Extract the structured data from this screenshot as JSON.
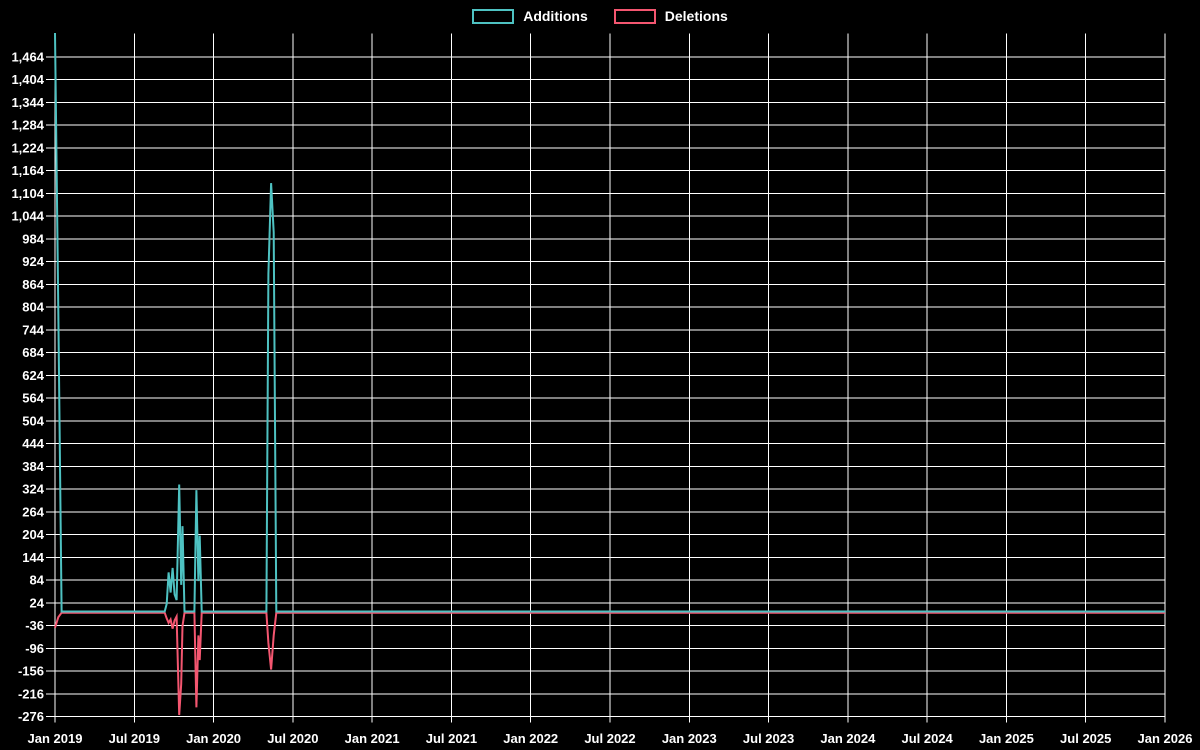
{
  "legend": {
    "items": [
      {
        "label": "Additions",
        "color": "#4ec2c2"
      },
      {
        "label": "Deletions",
        "color": "#f45670"
      }
    ]
  },
  "chart_data": {
    "type": "line",
    "title": "",
    "xlabel": "",
    "ylabel": "",
    "background_color": "#000000",
    "grid_color": "#ffffff",
    "text_color": "#ffffff",
    "grid": true,
    "legend_position": "top-center",
    "x_axis": {
      "tick_labels": [
        "Jan 2019",
        "Jul 2019",
        "Jan 2020",
        "Jul 2020",
        "Jan 2021",
        "Jul 2021",
        "Jan 2022",
        "Jul 2022",
        "Jan 2023",
        "Jul 2023",
        "Jan 2024",
        "Jul 2024",
        "Jan 2025",
        "Jul 2025",
        "Jan 2026"
      ],
      "tick_month_offsets": [
        0,
        6,
        12,
        18,
        24,
        30,
        36,
        42,
        48,
        54,
        60,
        66,
        72,
        78,
        84
      ],
      "gridline_interval_months": 6
    },
    "y_axis": {
      "min": -276,
      "max": 1464,
      "step": 60,
      "tick_labels": [
        "1,464",
        "1,404",
        "1,344",
        "1,284",
        "1,224",
        "1,164",
        "1,104",
        "1,044",
        "984",
        "924",
        "864",
        "804",
        "744",
        "684",
        "624",
        "564",
        "504",
        "444",
        "384",
        "324",
        "264",
        "204",
        "144",
        "84",
        "24",
        "-36",
        "-96",
        "-156",
        "-216",
        "-276"
      ]
    },
    "series": [
      {
        "name": "Additions",
        "color": "#4ec2c2",
        "x_unit": "months_since_jan_2019",
        "clipped_at_top": true,
        "points": [
          [
            0,
            1540
          ],
          [
            0.25,
            795
          ],
          [
            0.5,
            0
          ],
          [
            8.3,
            0
          ],
          [
            8.45,
            20
          ],
          [
            8.6,
            103
          ],
          [
            8.75,
            50
          ],
          [
            8.9,
            115
          ],
          [
            9.05,
            45
          ],
          [
            9.2,
            30
          ],
          [
            9.4,
            335
          ],
          [
            9.55,
            70
          ],
          [
            9.65,
            225
          ],
          [
            9.8,
            0
          ],
          [
            10.55,
            0
          ],
          [
            10.7,
            320
          ],
          [
            10.85,
            80
          ],
          [
            10.95,
            200
          ],
          [
            11.1,
            0
          ],
          [
            16.0,
            0
          ],
          [
            16.15,
            890
          ],
          [
            16.35,
            1130
          ],
          [
            16.55,
            1000
          ],
          [
            16.75,
            0
          ],
          [
            84,
            0
          ]
        ]
      },
      {
        "name": "Deletions",
        "color": "#f45670",
        "x_unit": "months_since_jan_2019",
        "clipped_at_top": false,
        "points": [
          [
            0,
            -40
          ],
          [
            0.25,
            -12
          ],
          [
            0.5,
            0
          ],
          [
            8.3,
            0
          ],
          [
            8.45,
            -15
          ],
          [
            8.6,
            -27
          ],
          [
            8.75,
            -18
          ],
          [
            8.9,
            -42
          ],
          [
            9.05,
            -20
          ],
          [
            9.2,
            -10
          ],
          [
            9.4,
            -270
          ],
          [
            9.55,
            -188
          ],
          [
            9.65,
            -35
          ],
          [
            9.8,
            0
          ],
          [
            10.55,
            0
          ],
          [
            10.7,
            -250
          ],
          [
            10.85,
            -60
          ],
          [
            10.95,
            -125
          ],
          [
            11.1,
            0
          ],
          [
            16.0,
            0
          ],
          [
            16.15,
            -80
          ],
          [
            16.35,
            -150
          ],
          [
            16.55,
            -60
          ],
          [
            16.75,
            0
          ],
          [
            84,
            0
          ]
        ]
      }
    ]
  }
}
